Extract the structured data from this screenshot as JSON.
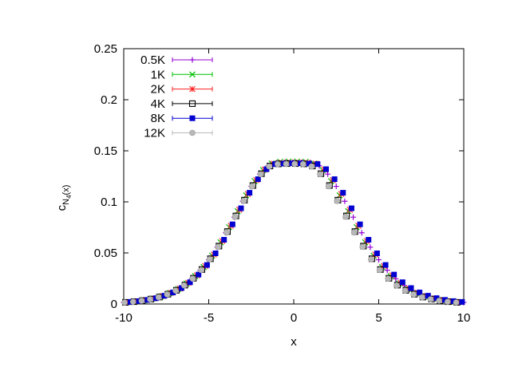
{
  "chart_data": {
    "type": "scatter",
    "title": "",
    "xlabel": "x",
    "ylabel_main": "c",
    "ylabel_sub": "N",
    "ylabel_subsub": "4",
    "ylabel_tail": "(x)",
    "xlim": [
      -10,
      10
    ],
    "ylim": [
      0,
      0.25
    ],
    "xticks": [
      -10,
      -5,
      0,
      5,
      10
    ],
    "xtick_labels": [
      "-10",
      "-5",
      "0",
      "5",
      "10"
    ],
    "yticks": [
      0,
      0.05,
      0.1,
      0.15,
      0.2,
      0.25
    ],
    "ytick_labels": [
      "0",
      "0.05",
      "0.1",
      "0.15",
      "0.2",
      "0.25"
    ],
    "grid": false,
    "legend_position": "top-left",
    "series": [
      {
        "name": "0.5K",
        "color": "#9400d3",
        "marker": "plus",
        "x": [
          -10.0,
          -9.5,
          -9.0,
          -8.5,
          -8.0,
          -7.5,
          -7.0,
          -6.5,
          -6.0,
          -5.5,
          -5.0,
          -4.5,
          -4.0,
          -3.5,
          -3.0,
          -2.5,
          -2.0,
          -1.5,
          -1.0,
          -0.5,
          0.0,
          0.5,
          1.0,
          1.5,
          2.0,
          2.5,
          3.0,
          3.5,
          4.0,
          4.5,
          5.0,
          5.5,
          6.0,
          6.5,
          7.0,
          7.5,
          8.0,
          8.5,
          9.0,
          9.5,
          10.0
        ],
        "y": [
          0.0015,
          0.0022,
          0.0032,
          0.0046,
          0.0066,
          0.0093,
          0.013,
          0.018,
          0.0246,
          0.033,
          0.0433,
          0.0556,
          0.0697,
          0.085,
          0.1006,
          0.1152,
          0.1272,
          0.1354,
          0.1382,
          0.1386,
          0.1385,
          0.1386,
          0.1382,
          0.1354,
          0.1272,
          0.1152,
          0.1006,
          0.085,
          0.0697,
          0.0556,
          0.0433,
          0.033,
          0.0246,
          0.018,
          0.013,
          0.0093,
          0.0066,
          0.0046,
          0.0032,
          0.0022,
          0.0015
        ]
      },
      {
        "name": "1K",
        "color": "#00c000",
        "marker": "cross",
        "x": [
          -9.8,
          -9.3,
          -8.8,
          -8.3,
          -7.8,
          -7.3,
          -6.8,
          -6.3,
          -5.8,
          -5.3,
          -4.8,
          -4.3,
          -3.8,
          -3.3,
          -2.8,
          -2.3,
          -1.8,
          -1.3,
          -0.8,
          -0.3,
          0.2,
          0.7,
          1.2,
          1.7,
          2.2,
          2.7,
          3.2,
          3.7,
          4.2,
          4.7,
          5.2,
          5.7,
          6.2,
          6.7,
          7.2,
          7.7,
          8.2,
          8.7,
          9.2,
          9.7
        ],
        "y": [
          0.0018,
          0.0026,
          0.0037,
          0.0053,
          0.0075,
          0.0106,
          0.0146,
          0.0201,
          0.0273,
          0.0363,
          0.0473,
          0.0604,
          0.0752,
          0.0909,
          0.1064,
          0.1203,
          0.1311,
          0.1375,
          0.1392,
          0.1395,
          0.1395,
          0.1392,
          0.1375,
          0.1311,
          0.1203,
          0.1064,
          0.0909,
          0.0752,
          0.0604,
          0.0473,
          0.0363,
          0.0273,
          0.0201,
          0.0146,
          0.0106,
          0.0075,
          0.0053,
          0.0037,
          0.0026,
          0.0018
        ]
      },
      {
        "name": "2K",
        "color": "#ff2020",
        "marker": "star",
        "x": [
          -9.7,
          -9.2,
          -8.7,
          -8.2,
          -7.7,
          -7.2,
          -6.7,
          -6.2,
          -5.7,
          -5.2,
          -4.7,
          -4.2,
          -3.7,
          -3.2,
          -2.7,
          -2.2,
          -1.7,
          -1.2,
          -0.7,
          -0.2,
          0.3,
          0.8,
          1.3,
          1.8,
          2.3,
          2.8,
          3.3,
          3.8,
          4.3,
          4.8,
          5.3,
          5.8,
          6.3,
          6.8,
          7.3,
          7.8,
          8.3,
          8.8,
          9.3,
          9.8
        ],
        "y": [
          0.0019,
          0.0027,
          0.0039,
          0.0055,
          0.0078,
          0.0109,
          0.0151,
          0.0207,
          0.028,
          0.0372,
          0.0484,
          0.0616,
          0.0766,
          0.0923,
          0.1077,
          0.1213,
          0.1317,
          0.1374,
          0.1383,
          0.1385,
          0.1385,
          0.1383,
          0.1374,
          0.1317,
          0.1213,
          0.1077,
          0.0923,
          0.0766,
          0.0616,
          0.0484,
          0.0372,
          0.028,
          0.0207,
          0.0151,
          0.0109,
          0.0078,
          0.0055,
          0.0039,
          0.0027,
          0.0019
        ]
      },
      {
        "name": "4K",
        "color": "#000000",
        "marker": "open-square",
        "x": [
          -9.9,
          -9.4,
          -8.9,
          -8.4,
          -7.9,
          -7.4,
          -6.9,
          -6.4,
          -5.9,
          -5.4,
          -4.9,
          -4.4,
          -3.9,
          -3.4,
          -2.9,
          -2.4,
          -1.9,
          -1.4,
          -0.9,
          -0.4,
          0.1,
          0.6,
          1.1,
          1.6,
          2.1,
          2.6,
          3.1,
          3.6,
          4.1,
          4.6,
          5.1,
          5.6,
          6.1,
          6.6,
          7.1,
          7.6,
          8.1,
          8.6,
          9.1,
          9.6
        ],
        "y": [
          0.0016,
          0.0023,
          0.0033,
          0.0048,
          0.0068,
          0.0096,
          0.0134,
          0.0185,
          0.0252,
          0.0338,
          0.0443,
          0.0567,
          0.0709,
          0.0862,
          0.1017,
          0.116,
          0.1276,
          0.1351,
          0.1372,
          0.1375,
          0.1375,
          0.1372,
          0.1351,
          0.1276,
          0.116,
          0.1017,
          0.0862,
          0.0709,
          0.0567,
          0.0443,
          0.0338,
          0.0252,
          0.0185,
          0.0134,
          0.0096,
          0.0068,
          0.0048,
          0.0033,
          0.0023,
          0.0016
        ]
      },
      {
        "name": "8K",
        "color": "#0000d0",
        "marker": "filled-square",
        "x": [
          -9.6,
          -9.1,
          -8.6,
          -8.1,
          -7.6,
          -7.1,
          -6.6,
          -6.1,
          -5.6,
          -5.1,
          -4.6,
          -4.1,
          -3.6,
          -3.1,
          -2.6,
          -2.1,
          -1.6,
          -1.1,
          -0.6,
          -0.1,
          0.4,
          0.9,
          1.4,
          1.9,
          2.4,
          2.9,
          3.4,
          3.9,
          4.4,
          4.9,
          5.4,
          5.9,
          6.4,
          6.9,
          7.4,
          7.9,
          8.4,
          8.9,
          9.4,
          9.9
        ],
        "y": [
          0.002,
          0.0028,
          0.004,
          0.0057,
          0.0081,
          0.0113,
          0.0156,
          0.0213,
          0.0288,
          0.0382,
          0.0496,
          0.0629,
          0.078,
          0.0937,
          0.1089,
          0.1222,
          0.132,
          0.137,
          0.1375,
          0.1378,
          0.1378,
          0.1375,
          0.137,
          0.132,
          0.1222,
          0.1089,
          0.0937,
          0.078,
          0.0629,
          0.0496,
          0.0382,
          0.0288,
          0.0213,
          0.0156,
          0.0113,
          0.0081,
          0.0057,
          0.004,
          0.0028,
          0.002
        ]
      },
      {
        "name": "12K",
        "color": "#b8b8b8",
        "marker": "circle",
        "x": [
          -9.95,
          -9.45,
          -8.95,
          -8.45,
          -7.95,
          -7.45,
          -6.95,
          -6.45,
          -5.95,
          -5.45,
          -4.95,
          -4.45,
          -3.95,
          -3.45,
          -2.95,
          -2.45,
          -1.95,
          -1.45,
          -0.95,
          -0.45,
          0.05,
          0.55,
          1.05,
          1.55,
          2.05,
          2.55,
          3.05,
          3.55,
          4.05,
          4.55,
          5.05,
          5.55,
          6.05,
          6.55,
          7.05,
          7.55,
          8.05,
          8.55,
          9.05,
          9.55
        ],
        "y": [
          0.0015,
          0.0022,
          0.0032,
          0.0046,
          0.0066,
          0.0094,
          0.0131,
          0.0182,
          0.0248,
          0.0333,
          0.0437,
          0.056,
          0.0701,
          0.0854,
          0.1009,
          0.1153,
          0.127,
          0.1347,
          0.137,
          0.1372,
          0.1372,
          0.137,
          0.1347,
          0.127,
          0.1153,
          0.1009,
          0.0854,
          0.0701,
          0.056,
          0.0437,
          0.0333,
          0.0248,
          0.0182,
          0.0131,
          0.0094,
          0.0066,
          0.0046,
          0.0032,
          0.0022,
          0.0015
        ]
      }
    ]
  }
}
